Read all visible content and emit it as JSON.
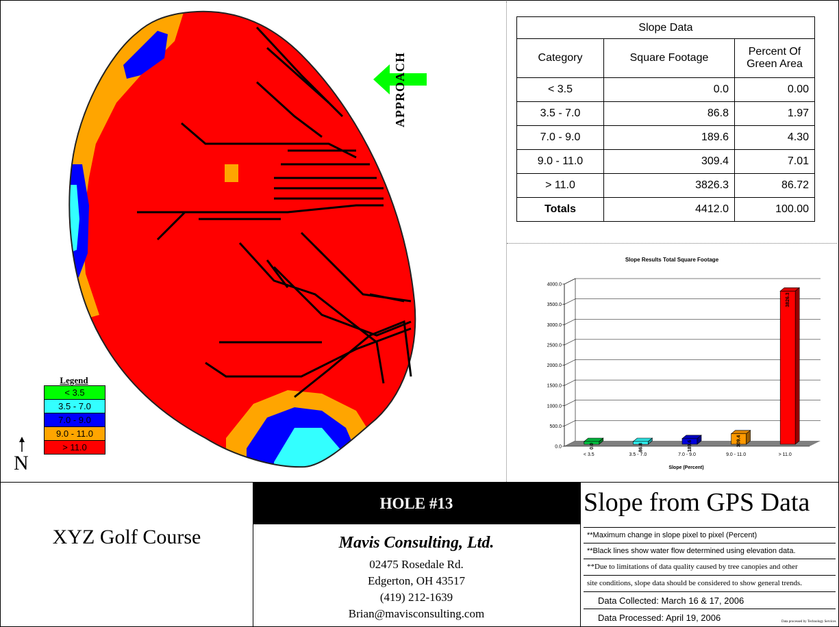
{
  "map": {
    "approach_label": "APPROACH",
    "north_label": "N",
    "legend": {
      "title": "Legend",
      "items": [
        {
          "label": "< 3.5",
          "color": "#00ff00"
        },
        {
          "label": "3.5 - 7.0",
          "color": "#33ffff"
        },
        {
          "label": "7.0 - 9.0",
          "color": "#0000ff"
        },
        {
          "label": "9.0 - 11.0",
          "color": "#ffa500"
        },
        {
          "label": "> 11.0",
          "color": "#ff0000"
        }
      ]
    }
  },
  "slope_table": {
    "title": "Slope Data",
    "headers": [
      "Category",
      "Square Footage",
      "Percent Of Green Area"
    ],
    "rows": [
      [
        "< 3.5",
        "0.0",
        "0.00"
      ],
      [
        "3.5 - 7.0",
        "86.8",
        "1.97"
      ],
      [
        "7.0 - 9.0",
        "189.6",
        "4.30"
      ],
      [
        "9.0 - 11.0",
        "309.4",
        "7.01"
      ],
      [
        "> 11.0",
        "3826.3",
        "86.72"
      ]
    ],
    "totals": [
      "Totals",
      "4412.0",
      "100.00"
    ]
  },
  "chart_data": {
    "type": "bar",
    "title": "Slope Results Total Square Footage",
    "xlabel": "Slope (Percent)",
    "ylabel": "",
    "categories": [
      "< 3.5",
      "3.5 - 7.0",
      "7.0 - 9.0",
      "9.0 - 11.0",
      "> 11.0"
    ],
    "values": [
      0.0,
      86.8,
      189.6,
      309.4,
      3826.3
    ],
    "data_labels": [
      "0.0",
      "86.8",
      "189.6",
      "309.4",
      "3826.3"
    ],
    "colors": [
      "#00cc44",
      "#33ffff",
      "#0000dd",
      "#ff9900",
      "#ff0000"
    ],
    "yticks": [
      "0.0",
      "500.0",
      "1000.0",
      "1500.0",
      "2000.0",
      "2500.0",
      "3000.0",
      "3500.0",
      "4000.0"
    ],
    "ylim": [
      0,
      4000
    ],
    "grid": true
  },
  "footer": {
    "course_name": "XYZ Golf Course",
    "hole": "HOLE #13",
    "company": "Mavis Consulting, Ltd.",
    "address1": "02475 Rosedale Rd.",
    "address2": "Edgerton, OH 43517",
    "phone": "(419) 212-1639",
    "email": "Brian@mavisconsulting.com",
    "title": "Slope from GPS Data",
    "note1": "**Maximum change in slope pixel to pixel (Percent)",
    "note2": "**Black lines show water flow determined using elevation data.",
    "note3a": "**Due to limitations of data quality caused by tree canopies and other",
    "note3b": "site conditions, slope data should be considered to show general trends.",
    "collected": "Data Collected: March 16 & 17, 2006",
    "processed": "Data Processed: April 19, 2006",
    "credit": "Data processed by Technology Services"
  }
}
